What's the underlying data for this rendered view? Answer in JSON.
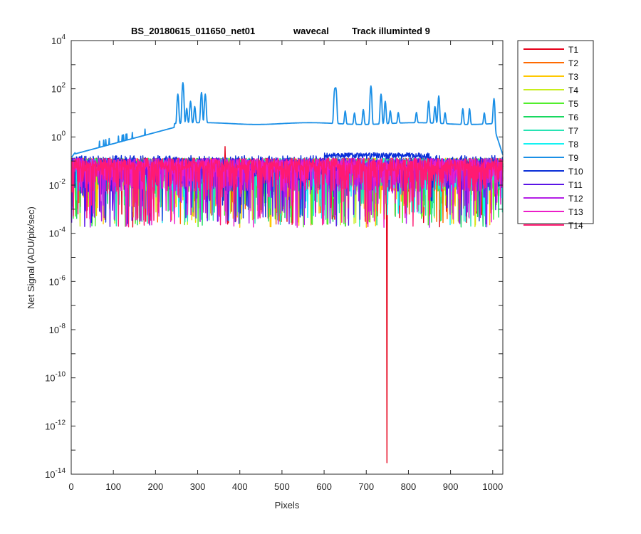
{
  "chart_data": {
    "type": "line",
    "title": {
      "dataset": "BS_20180615_011650_net01",
      "mode": "wavecal",
      "track": "Track illuminted 9"
    },
    "xlabel": "Pixels",
    "ylabel": "Net Signal (ADU/pix/sec)",
    "xlim": [
      0,
      1024
    ],
    "ylim_exponent": [
      -14,
      4
    ],
    "yscale": "log",
    "x_ticks": [
      "0",
      "100",
      "200",
      "300",
      "400",
      "500",
      "600",
      "700",
      "800",
      "900",
      "1000"
    ],
    "y_ticks": [
      {
        "base": "10",
        "exp": "4"
      },
      {
        "base": "10",
        "exp": "2"
      },
      {
        "base": "10",
        "exp": "0"
      },
      {
        "base": "10",
        "exp": "-2"
      },
      {
        "base": "10",
        "exp": "-4"
      },
      {
        "base": "10",
        "exp": "-6"
      },
      {
        "base": "10",
        "exp": "-8"
      },
      {
        "base": "10",
        "exp": "-10"
      },
      {
        "base": "10",
        "exp": "-12"
      },
      {
        "base": "10",
        "exp": "-14"
      }
    ],
    "grid": false,
    "legend_position": "outside-right",
    "series": [
      {
        "name": "T1",
        "color": "#e6001a",
        "level": 0.07
      },
      {
        "name": "T2",
        "color": "#ff6a00",
        "level": 0.07
      },
      {
        "name": "T3",
        "color": "#ffc800",
        "level": 0.07
      },
      {
        "name": "T4",
        "color": "#c8ee1c",
        "level": 0.07
      },
      {
        "name": "T5",
        "color": "#52ee2c",
        "level": 0.07
      },
      {
        "name": "T6",
        "color": "#18d860",
        "level": 0.07
      },
      {
        "name": "T7",
        "color": "#27e3b3",
        "level": 0.07
      },
      {
        "name": "T8",
        "color": "#14f2f2",
        "level": 0.07
      },
      {
        "name": "T9",
        "color": "#1a8fe6",
        "level": 3.5
      },
      {
        "name": "T10",
        "color": "#0a2fd8",
        "level": 0.09
      },
      {
        "name": "T11",
        "color": "#5a14e6",
        "level": 0.07
      },
      {
        "name": "T12",
        "color": "#b41ee6",
        "level": 0.07
      },
      {
        "name": "T13",
        "color": "#ec1ec8",
        "level": 0.07
      },
      {
        "name": "T14",
        "color": "#ff1a72",
        "level": 0.07
      }
    ],
    "features": {
      "T1_dip": {
        "x": 749,
        "y": 3e-14
      },
      "T1_spike": {
        "x": 365,
        "y": 0.4
      },
      "T9_peaks": [
        {
          "x": 253,
          "y": 60
        },
        {
          "x": 265,
          "y": 180
        },
        {
          "x": 274,
          "y": 15
        },
        {
          "x": 283,
          "y": 30
        },
        {
          "x": 293,
          "y": 18
        },
        {
          "x": 309,
          "y": 70
        },
        {
          "x": 318,
          "y": 60
        },
        {
          "x": 625,
          "y": 90
        },
        {
          "x": 628,
          "y": 100
        },
        {
          "x": 650,
          "y": 12
        },
        {
          "x": 672,
          "y": 10
        },
        {
          "x": 693,
          "y": 14
        },
        {
          "x": 711,
          "y": 130
        },
        {
          "x": 735,
          "y": 60
        },
        {
          "x": 745,
          "y": 30
        },
        {
          "x": 757,
          "y": 12
        },
        {
          "x": 776,
          "y": 10
        },
        {
          "x": 819,
          "y": 10
        },
        {
          "x": 848,
          "y": 30
        },
        {
          "x": 863,
          "y": 18
        },
        {
          "x": 872,
          "y": 50
        },
        {
          "x": 887,
          "y": 10
        },
        {
          "x": 929,
          "y": 15
        },
        {
          "x": 945,
          "y": 15
        },
        {
          "x": 980,
          "y": 10
        },
        {
          "x": 1003,
          "y": 40
        }
      ]
    }
  }
}
